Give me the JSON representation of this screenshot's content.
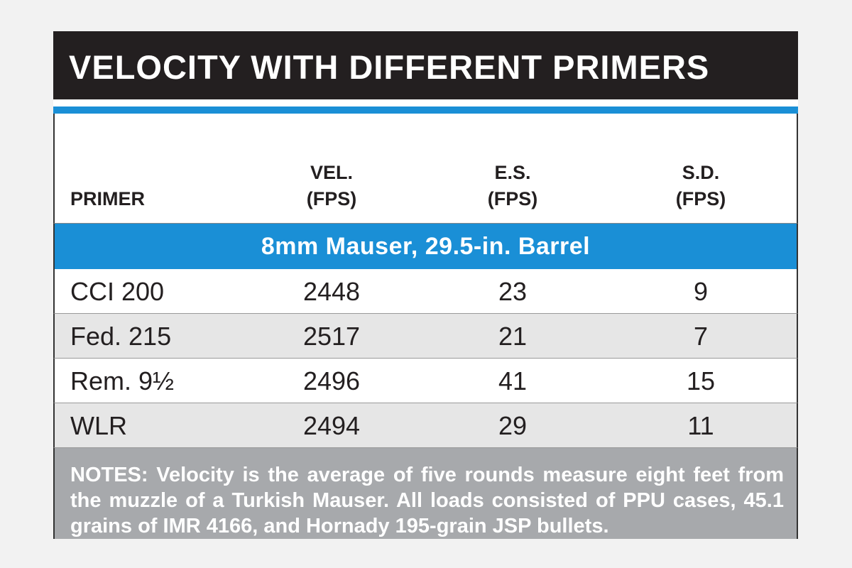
{
  "title": "VELOCITY WITH DIFFERENT PRIMERS",
  "headers": {
    "primer": "PRIMER",
    "vel_line1": "VEL.",
    "vel_line2": "(FPS)",
    "es_line1": "E.S.",
    "es_line2": "(FPS)",
    "sd_line1": "S.D.",
    "sd_line2": "(FPS)"
  },
  "section": "8mm Mauser, 29.5-in. Barrel",
  "rows": [
    {
      "primer": "CCI 200",
      "vel": "2448",
      "es": "23",
      "sd": "9"
    },
    {
      "primer": "Fed. 215",
      "vel": "2517",
      "es": "21",
      "sd": "7"
    },
    {
      "primer": "Rem. 9½",
      "vel": "2496",
      "es": "41",
      "sd": "15"
    },
    {
      "primer": "WLR",
      "vel": "2494",
      "es": "29",
      "sd": "11"
    }
  ],
  "notes": "NOTES: Velocity is the average of five rounds measure eight feet from the muzzle of a Turkish Mauser. All loads consisted of PPU cases, 45.1 grains of IMR 4166, and Hornady 195-grain JSP bullets.",
  "colors": {
    "title_bar": "#231f20",
    "accent_blue": "#1a8fd6",
    "stripe_gray": "#e6e6e6",
    "notes_gray": "#a7a9ac"
  }
}
